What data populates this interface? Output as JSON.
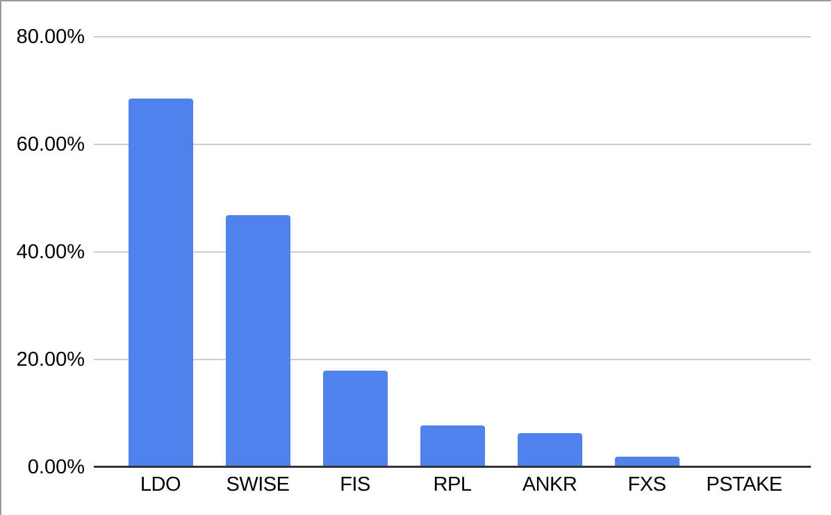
{
  "chart_data": {
    "type": "bar",
    "title": "",
    "xlabel": "",
    "ylabel": "",
    "categories": [
      "LDO",
      "SWISE",
      "FIS",
      "RPL",
      "ANKR",
      "FXS",
      "PSTAKE"
    ],
    "values": [
      68.5,
      46.8,
      17.9,
      7.7,
      6.3,
      1.9,
      0
    ],
    "unit": "%",
    "ylim": [
      0,
      80
    ],
    "yticks": [
      0,
      20,
      40,
      60,
      80
    ],
    "ytick_labels": [
      "0.00%",
      "20.00%",
      "40.00%",
      "60.00%",
      "80.00%"
    ],
    "grid": true,
    "legend": "none"
  },
  "colors": {
    "bar": "#5082eb",
    "gridline": "#cccccc",
    "axis_line": "#333333",
    "text": "#000000",
    "frame_border": "#999999",
    "background": "#ffffff"
  }
}
